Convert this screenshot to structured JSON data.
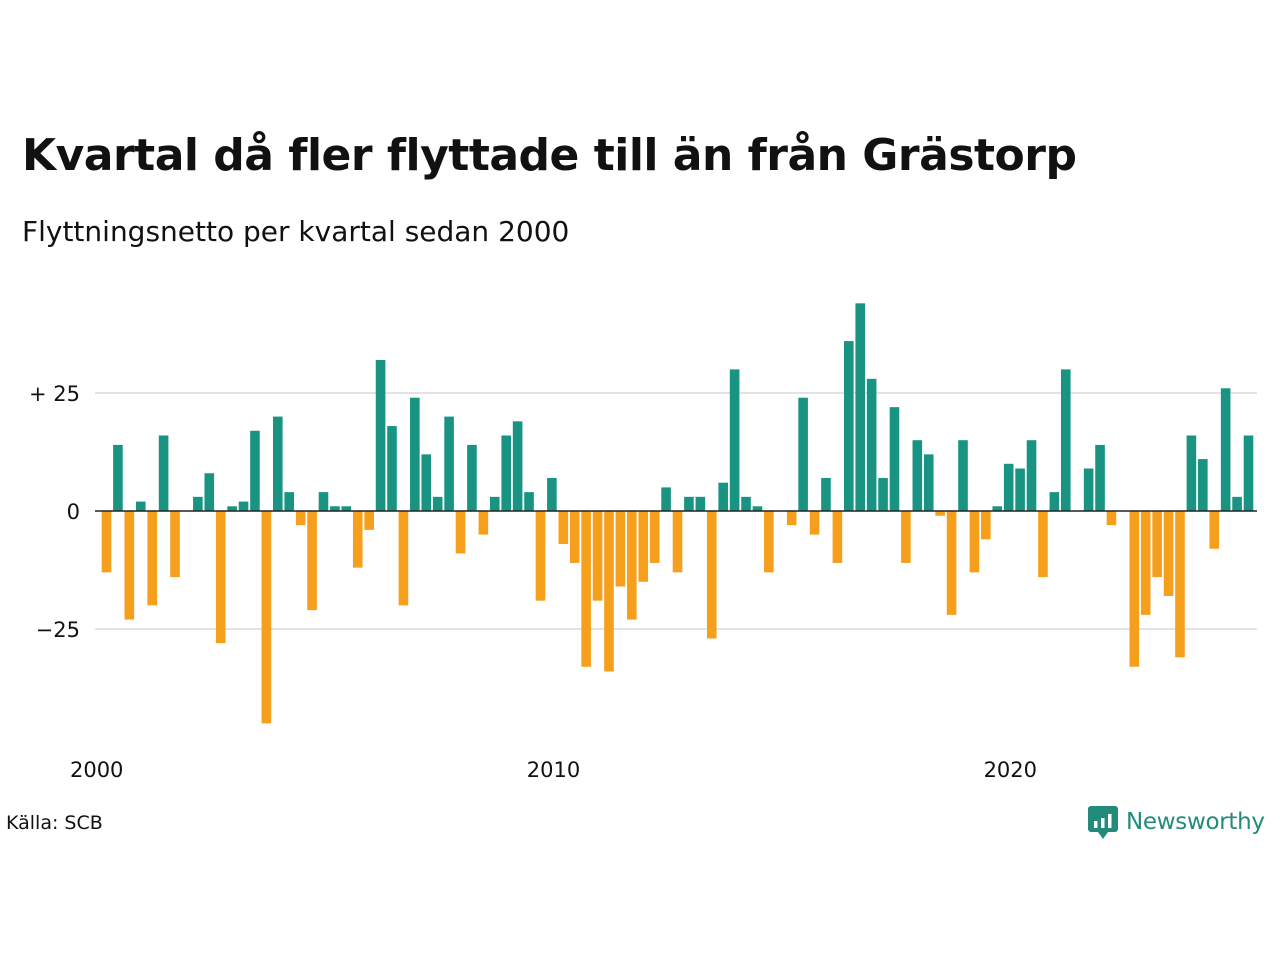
{
  "title": "Kvartal då fler flyttade till än från Grästorp",
  "subtitle": "Flyttningsnetto per kvartal sedan 2000",
  "source": "Källa: SCB",
  "brand": {
    "name": "Newsworthy",
    "icon": "newsworthy-logo-icon",
    "color": "#238b7b"
  },
  "chart_data": {
    "type": "bar",
    "title": "Kvartal då fler flyttade till än från Grästorp",
    "subtitle": "Flyttningsnetto per kvartal sedan 2000",
    "x_start": "2000Q1",
    "x_ticks": [
      "2000",
      "2010",
      "2020"
    ],
    "y_ticks": [
      {
        "value": 25,
        "label": "+ 25"
      },
      {
        "value": 0,
        "label": "0"
      },
      {
        "value": -25,
        "label": "−25"
      }
    ],
    "ylim": [
      -45,
      44
    ],
    "grid": true,
    "legend": "none",
    "colors": {
      "positive": "#1a9482",
      "negative": "#f59f1c",
      "grid": "#e3e3e3",
      "zero": "#222222"
    },
    "values": [
      -13,
      14,
      -23,
      2,
      -20,
      16,
      -14,
      0,
      3,
      8,
      -28,
      1,
      2,
      17,
      -45,
      20,
      4,
      -3,
      -21,
      4,
      1,
      1,
      -12,
      -4,
      32,
      18,
      -20,
      24,
      12,
      3,
      20,
      -9,
      14,
      -5,
      3,
      16,
      19,
      4,
      -19,
      7,
      -7,
      -11,
      -33,
      -19,
      -34,
      -16,
      -23,
      -15,
      -11,
      5,
      -13,
      3,
      3,
      -27,
      6,
      30,
      3,
      1,
      -13,
      0,
      -3,
      24,
      -5,
      7,
      -11,
      36,
      44,
      28,
      7,
      22,
      -11,
      15,
      12,
      -1,
      -22,
      15,
      -13,
      -6,
      1,
      10,
      9,
      15,
      -14,
      4,
      30,
      0,
      9,
      14,
      -3,
      0,
      -33,
      -22,
      -14,
      -18,
      -31,
      16,
      11,
      -8,
      26,
      3,
      16
    ]
  }
}
